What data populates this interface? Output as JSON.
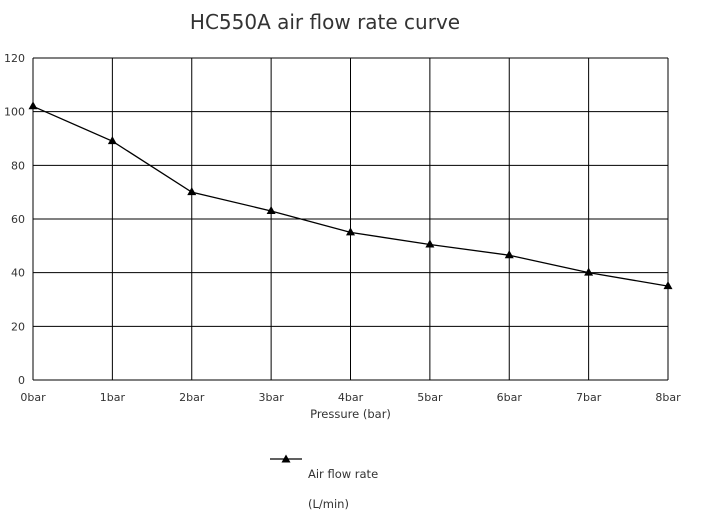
{
  "chart_data": {
    "type": "line",
    "title": "HC550A air flow rate curve",
    "xlabel": "Pressure (bar)",
    "ylabel": "",
    "categories": [
      "0bar",
      "1bar",
      "2bar",
      "3bar",
      "4bar",
      "5bar",
      "6bar",
      "7bar",
      "8bar"
    ],
    "ylim": [
      0,
      120
    ],
    "yticks": [
      0,
      20,
      40,
      60,
      80,
      100,
      120
    ],
    "grid": true,
    "legend_position": "bottom",
    "series": [
      {
        "name": "Air flow rate (L/min)",
        "values": [
          102,
          89,
          70,
          63,
          55,
          50.5,
          46.5,
          40,
          35
        ],
        "marker": "triangle",
        "color": "#000000"
      }
    ]
  },
  "legend": {
    "label_line1": "Air flow rate",
    "label_line2": "(L/min)"
  }
}
